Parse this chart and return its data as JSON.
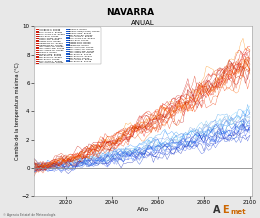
{
  "title": "NAVARRA",
  "subtitle": "ANUAL",
  "xlabel": "Año",
  "ylabel": "Cambio de la temperatura máxima (°C)",
  "xlim": [
    2006,
    2101
  ],
  "ylim": [
    -2,
    10
  ],
  "yticks": [
    -2,
    0,
    2,
    4,
    6,
    8,
    10
  ],
  "xticks": [
    2020,
    2040,
    2060,
    2080,
    2100
  ],
  "start_year": 2006,
  "end_year": 2100,
  "n_red_series": 20,
  "n_blue_series": 19,
  "legend_left_col": [
    "ACCESS1-0. RCP85",
    "ACCESS1-3. RCP85",
    "BCC-CSM1-1. RCP85",
    "BCC-CSM1-1-M. RCP85",
    "BNU-ESM. RCP85",
    "CMCC-CESM. RCP85",
    "CMCC-CM. RCP85",
    "CNRM-CM5. RCP85",
    "HadGEM2-CC. RCP85",
    "HadGEM2-ES. RCP85",
    "IPSL-CM5A-LR. RCP85",
    "IPSL-CM5A-MR. RCP85",
    "IPSL-CM5B-LR. RCP85",
    "MIROC5. RCP85",
    "MIROC-ESM. RCP85",
    "MPI-ESM-LR. RCP85",
    "MPI-ESM-MR. RCP85",
    "MPI-ESM-P. RCP85",
    "BCC-CSM1-1. RCP85",
    "IPSL-CGALIOR. RCP85"
  ],
  "legend_right_col": [
    "MIROC5. RCP45",
    "MIROC-ESM(CHEM). RCP45",
    "MIROC-ESM. RCP45",
    "MPI-ESM-LR0. RCP45",
    "BCC-CSM1-1. RCP45",
    "BCC-CSM1-1-M. RCP45",
    "BNU-ESM. RCP45",
    "CNRM-CM5. RCP45",
    "CNRM-CM5. RCP45",
    "HadGEM2. RCP45",
    "IPSL-CGALIOR. RCP45",
    "IPSL-CM5A-LR. RCP45",
    "IPSL-CM5A-MR. RCP45",
    "IPSL-CM5B-LR. RCP45",
    "MPI-ESM-LR. RCP45",
    "MPI-ESM-MR. RCP45",
    "MPI-ESM-P. RCP45",
    "BCC-CSM1-1. RCP45",
    "MPI-ESM-LR. RCP45"
  ],
  "red_colors": [
    "#cc0000",
    "#dd1100",
    "#ee2200",
    "#ff3300",
    "#cc1100",
    "#dd2200",
    "#ee3300",
    "#ff4400",
    "#bb0000",
    "#cc2200",
    "#ff5500",
    "#ff6600",
    "#ee0000",
    "#dd3300",
    "#ff7700",
    "#cc3300",
    "#ee4400",
    "#ff8800",
    "#aa0000",
    "#ee5500"
  ],
  "blue_colors": [
    "#0033cc",
    "#0044dd",
    "#0055ee",
    "#0066ff",
    "#1177ee",
    "#2288ff",
    "#3399ee",
    "#44aadd",
    "#55bbee",
    "#66ccff",
    "#0022bb",
    "#1133cc",
    "#2244dd",
    "#3355ee",
    "#4466ff",
    "#5577ee",
    "#6688dd",
    "#7799cc",
    "#0011aa",
    "#1122bb"
  ],
  "background_color": "#e8e8e8",
  "plot_bg_color": "#ffffff",
  "hline_color": "#888888",
  "footer_text": "© Agencia Estatal de Meteorología"
}
